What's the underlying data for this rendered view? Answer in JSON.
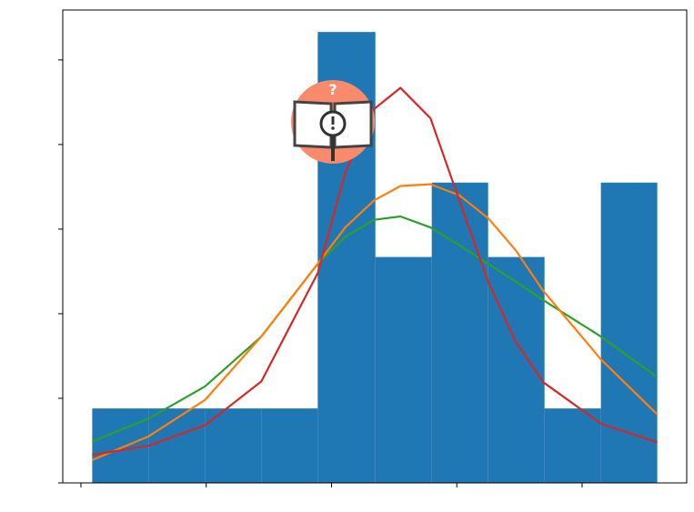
{
  "chart_data": {
    "type": "histogram",
    "bins": [
      0.09,
      0.54,
      0.99,
      1.44,
      1.89,
      2.35,
      2.8,
      3.25,
      3.7,
      4.15,
      4.6
    ],
    "values": [
      0.88,
      0.88,
      0.88,
      0.88,
      5.33,
      2.67,
      3.55,
      2.67,
      0.88,
      3.55
    ],
    "color": "#1f77b4",
    "curves": {
      "x": [
        0.09,
        0.54,
        0.99,
        1.44,
        1.89,
        2.11,
        2.34,
        2.55,
        2.79,
        3.02,
        3.25,
        3.47,
        3.69,
        4.15,
        4.6
      ],
      "series": [
        {
          "color": "#2ca02c",
          "values": [
            0.49,
            0.76,
            1.14,
            1.73,
            2.59,
            2.91,
            3.11,
            3.15,
            3.02,
            2.81,
            2.59,
            2.38,
            2.16,
            1.73,
            1.25
          ]
        },
        {
          "color": "#ff7f0e",
          "values": [
            0.27,
            0.55,
            0.98,
            1.73,
            2.59,
            3.02,
            3.34,
            3.51,
            3.53,
            3.4,
            3.13,
            2.75,
            2.27,
            1.46,
            0.81
          ]
        },
        {
          "color": "#d62728",
          "values": [
            0.33,
            0.44,
            0.68,
            1.2,
            2.48,
            3.67,
            4.42,
            4.67,
            4.31,
            3.34,
            2.38,
            1.67,
            1.19,
            0.7,
            0.48
          ]
        }
      ]
    },
    "xlim": [
      -0.145,
      4.835
    ],
    "ylim": [
      0,
      5.59
    ],
    "xticks": [
      0,
      1,
      2,
      3,
      4
    ],
    "yticks": [
      0,
      1,
      2,
      3,
      4,
      5
    ]
  }
}
